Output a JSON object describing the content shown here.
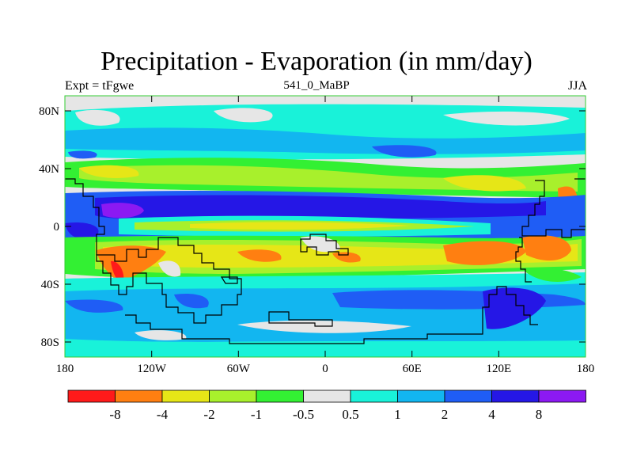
{
  "title": "Precipitation - Evaporation (in mm/day)",
  "subtitle_left": "Expt = tFgwe",
  "subtitle_center": "541_0_MaBP",
  "subtitle_right": "JJA",
  "y_axis_labels": [
    "80N",
    "40N",
    "0",
    "40S",
    "80S"
  ],
  "x_axis_labels": [
    "180",
    "120W",
    "60W",
    "0",
    "60E",
    "120E",
    "180"
  ],
  "colorbar": {
    "colors": [
      "#ff1a1a",
      "#ff7f11",
      "#e6e617",
      "#a8f02c",
      "#33f033",
      "#e6e6e6",
      "#19f2d9",
      "#12b6f0",
      "#1f5df5",
      "#2517e6",
      "#8c19f2"
    ],
    "labels": [
      "-8",
      "-4",
      "-2",
      "-1",
      "-0.5",
      "0.5",
      "1",
      "2",
      "4",
      "8"
    ]
  },
  "palette": {
    "gray": "#e6e6e6",
    "cyan": "#19f2d9",
    "sky": "#12b6f0",
    "blue": "#1f5df5",
    "darkblue": "#2517e6",
    "violet": "#8c19f2",
    "green": "#33f033",
    "lime": "#a8f02c",
    "yellow": "#e6e617",
    "orange": "#ff7f11",
    "red": "#ff1a1a",
    "frame": "#33cc33"
  }
}
